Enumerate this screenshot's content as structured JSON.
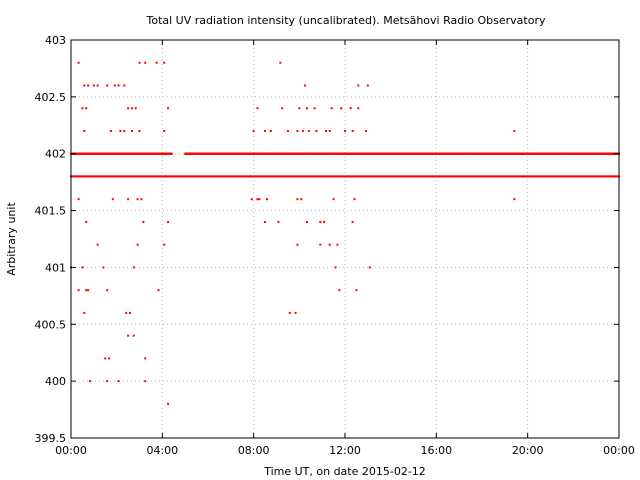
{
  "chart_data": {
    "type": "scatter",
    "title": "Total UV radiation intensity (uncalibrated). Metsähovi Radio Observatory",
    "xlabel": "Time UT, on date 2015-02-12",
    "ylabel": "Arbitrary unit",
    "xlim": [
      "00:00",
      "24:00"
    ],
    "ylim": [
      399.5,
      403
    ],
    "x_ticks": [
      "00:00",
      "04:00",
      "08:00",
      "12:00",
      "16:00",
      "20:00",
      "00:00"
    ],
    "y_ticks": [
      "399.5",
      "400",
      "400.5",
      "401",
      "401.5",
      "402",
      "402.5",
      "403"
    ],
    "grid": true,
    "marker_color": "#ff0000",
    "series": [
      {
        "continuous_bands": [
          {
            "value": 401.8,
            "from": "00:00",
            "to": "24:00"
          },
          {
            "value": 402.0,
            "from": "00:00",
            "to": "04:25"
          },
          {
            "value": 402.0,
            "from": "05:00",
            "to": "24:00"
          }
        ],
        "points": [
          [
            "00:20",
            402.8
          ],
          [
            "00:35",
            402.6
          ],
          [
            "00:45",
            402.6
          ],
          [
            "01:00",
            402.6
          ],
          [
            "01:10",
            402.6
          ],
          [
            "01:35",
            402.6
          ],
          [
            "01:55",
            402.6
          ],
          [
            "02:05",
            402.6
          ],
          [
            "02:20",
            402.6
          ],
          [
            "03:00",
            402.8
          ],
          [
            "03:15",
            402.8
          ],
          [
            "03:45",
            402.8
          ],
          [
            "04:05",
            402.8
          ],
          [
            "00:30",
            402.4
          ],
          [
            "00:40",
            402.4
          ],
          [
            "02:30",
            402.4
          ],
          [
            "02:40",
            402.4
          ],
          [
            "02:50",
            402.4
          ],
          [
            "04:15",
            402.4
          ],
          [
            "00:35",
            402.2
          ],
          [
            "01:45",
            402.2
          ],
          [
            "02:10",
            402.2
          ],
          [
            "02:20",
            402.2
          ],
          [
            "02:40",
            402.2
          ],
          [
            "03:00",
            402.2
          ],
          [
            "04:05",
            402.2
          ],
          [
            "00:20",
            401.6
          ],
          [
            "01:50",
            401.6
          ],
          [
            "02:30",
            401.6
          ],
          [
            "02:55",
            401.6
          ],
          [
            "03:05",
            401.6
          ],
          [
            "00:40",
            401.4
          ],
          [
            "03:10",
            401.4
          ],
          [
            "04:15",
            401.4
          ],
          [
            "01:10",
            401.2
          ],
          [
            "02:55",
            401.2
          ],
          [
            "04:05",
            401.2
          ],
          [
            "00:00",
            401.0
          ],
          [
            "00:30",
            401.0
          ],
          [
            "01:25",
            401.0
          ],
          [
            "02:45",
            401.0
          ],
          [
            "00:20",
            400.8
          ],
          [
            "00:40",
            400.8
          ],
          [
            "00:45",
            400.8
          ],
          [
            "01:35",
            400.8
          ],
          [
            "03:50",
            400.8
          ],
          [
            "00:35",
            400.6
          ],
          [
            "02:25",
            400.6
          ],
          [
            "02:35",
            400.6
          ],
          [
            "02:30",
            400.4
          ],
          [
            "02:45",
            400.4
          ],
          [
            "01:30",
            400.2
          ],
          [
            "01:40",
            400.2
          ],
          [
            "03:15",
            400.2
          ],
          [
            "00:50",
            400.0
          ],
          [
            "01:35",
            400.0
          ],
          [
            "02:05",
            400.0
          ],
          [
            "03:15",
            400.0
          ],
          [
            "04:15",
            399.8
          ],
          [
            "09:10",
            402.8
          ],
          [
            "10:15",
            402.6
          ],
          [
            "12:35",
            402.6
          ],
          [
            "13:00",
            402.6
          ],
          [
            "08:10",
            402.4
          ],
          [
            "09:15",
            402.4
          ],
          [
            "10:00",
            402.4
          ],
          [
            "10:20",
            402.4
          ],
          [
            "10:40",
            402.4
          ],
          [
            "11:25",
            402.4
          ],
          [
            "11:50",
            402.4
          ],
          [
            "12:15",
            402.4
          ],
          [
            "12:35",
            402.4
          ],
          [
            "08:00",
            402.2
          ],
          [
            "08:30",
            402.2
          ],
          [
            "08:45",
            402.2
          ],
          [
            "09:30",
            402.2
          ],
          [
            "09:55",
            402.2
          ],
          [
            "10:10",
            402.2
          ],
          [
            "10:25",
            402.2
          ],
          [
            "10:45",
            402.2
          ],
          [
            "11:10",
            402.2
          ],
          [
            "11:20",
            402.2
          ],
          [
            "12:00",
            402.2
          ],
          [
            "12:20",
            402.2
          ],
          [
            "12:55",
            402.2
          ],
          [
            "07:55",
            401.6
          ],
          [
            "08:10",
            401.6
          ],
          [
            "08:15",
            401.6
          ],
          [
            "08:35",
            401.6
          ],
          [
            "09:55",
            401.6
          ],
          [
            "10:05",
            401.6
          ],
          [
            "11:30",
            401.6
          ],
          [
            "12:25",
            401.6
          ],
          [
            "08:30",
            401.4
          ],
          [
            "09:05",
            401.4
          ],
          [
            "10:20",
            401.4
          ],
          [
            "10:55",
            401.4
          ],
          [
            "11:05",
            401.4
          ],
          [
            "12:20",
            401.4
          ],
          [
            "09:55",
            401.2
          ],
          [
            "10:55",
            401.2
          ],
          [
            "11:20",
            401.2
          ],
          [
            "11:40",
            401.2
          ],
          [
            "11:35",
            401.0
          ],
          [
            "13:05",
            401.0
          ],
          [
            "11:45",
            400.8
          ],
          [
            "12:30",
            400.8
          ],
          [
            "09:35",
            400.6
          ],
          [
            "09:50",
            400.6
          ],
          [
            "19:25",
            402.2
          ],
          [
            "19:25",
            401.6
          ]
        ]
      }
    ]
  }
}
